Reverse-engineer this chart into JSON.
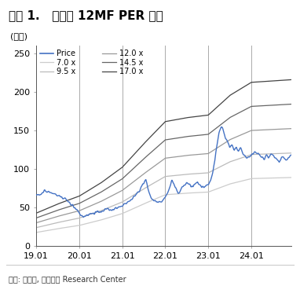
{
  "title": "그림 1.   덴티움 12MF PER 추이",
  "ylabel": "(천원)",
  "source": "자료: 덴티움, 대신증권 Research Center",
  "xlim": [
    2019.0,
    2024.92
  ],
  "ylim": [
    0,
    260
  ],
  "yticks": [
    0,
    50,
    100,
    150,
    200,
    250
  ],
  "xtick_labels": [
    "19.01",
    "20.01",
    "21.01",
    "22.01",
    "23.01",
    "24.01"
  ],
  "xtick_positions": [
    2019.0,
    2020.0,
    2021.0,
    2022.0,
    2023.0,
    2024.0
  ],
  "vline_positions": [
    2020.0,
    2021.0,
    2022.0,
    2023.0,
    2024.0
  ],
  "vline_color": "#aaaaaa",
  "price_color": "#4472C4",
  "per_colors": [
    "#cccccc",
    "#bbbbbb",
    "#999999",
    "#666666",
    "#444444"
  ],
  "per_labels": [
    "7.0 x",
    "9.5 x",
    "12.0 x",
    "14.5 x",
    "17.0 x"
  ],
  "per_multiples": [
    7.0,
    9.5,
    12.0,
    14.5,
    17.0
  ],
  "title_bg": "#e0e0e0",
  "title_color": "#000000",
  "title_fontsize": 11,
  "axis_fontsize": 8,
  "legend_fontsize": 7,
  "source_fontsize": 7,
  "eps_keypoints": {
    "2019.0": 2.5,
    "2019.5": 3.2,
    "2020.0": 3.8,
    "2020.5": 4.8,
    "2021.0": 6.0,
    "2021.5": 7.8,
    "2022.0": 9.5,
    "2022.5": 9.8,
    "2023.0": 10.0,
    "2023.5": 11.5,
    "2024.0": 12.5,
    "2024.92": 12.7
  },
  "price_keypoints": [
    [
      2019.0,
      65
    ],
    [
      2019.1,
      67
    ],
    [
      2019.2,
      72
    ],
    [
      2019.3,
      70
    ],
    [
      2019.4,
      68
    ],
    [
      2019.5,
      65
    ],
    [
      2019.6,
      63
    ],
    [
      2019.7,
      60
    ],
    [
      2019.8,
      55
    ],
    [
      2019.9,
      50
    ],
    [
      2020.0,
      42
    ],
    [
      2020.1,
      38
    ],
    [
      2020.2,
      40
    ],
    [
      2020.3,
      42
    ],
    [
      2020.4,
      44
    ],
    [
      2020.5,
      46
    ],
    [
      2020.6,
      46
    ],
    [
      2020.7,
      47
    ],
    [
      2020.8,
      47
    ],
    [
      2020.9,
      50
    ],
    [
      2021.0,
      52
    ],
    [
      2021.1,
      56
    ],
    [
      2021.2,
      60
    ],
    [
      2021.3,
      65
    ],
    [
      2021.4,
      72
    ],
    [
      2021.5,
      82
    ],
    [
      2021.55,
      87
    ],
    [
      2021.6,
      75
    ],
    [
      2021.65,
      65
    ],
    [
      2021.7,
      60
    ],
    [
      2021.8,
      58
    ],
    [
      2021.9,
      58
    ],
    [
      2022.0,
      62
    ],
    [
      2022.05,
      68
    ],
    [
      2022.1,
      75
    ],
    [
      2022.15,
      85
    ],
    [
      2022.2,
      80
    ],
    [
      2022.25,
      75
    ],
    [
      2022.3,
      68
    ],
    [
      2022.35,
      72
    ],
    [
      2022.4,
      78
    ],
    [
      2022.45,
      80
    ],
    [
      2022.5,
      82
    ],
    [
      2022.55,
      80
    ],
    [
      2022.6,
      76
    ],
    [
      2022.65,
      78
    ],
    [
      2022.7,
      80
    ],
    [
      2022.75,
      82
    ],
    [
      2022.8,
      80
    ],
    [
      2022.85,
      78
    ],
    [
      2022.9,
      76
    ],
    [
      2022.95,
      78
    ],
    [
      2023.0,
      80
    ],
    [
      2023.05,
      85
    ],
    [
      2023.1,
      95
    ],
    [
      2023.15,
      110
    ],
    [
      2023.2,
      130
    ],
    [
      2023.25,
      148
    ],
    [
      2023.3,
      155
    ],
    [
      2023.35,
      150
    ],
    [
      2023.4,
      140
    ],
    [
      2023.45,
      135
    ],
    [
      2023.5,
      128
    ],
    [
      2023.55,
      130
    ],
    [
      2023.6,
      125
    ],
    [
      2023.65,
      128
    ],
    [
      2023.7,
      122
    ],
    [
      2023.75,
      128
    ],
    [
      2023.8,
      120
    ],
    [
      2023.85,
      118
    ],
    [
      2023.9,
      115
    ],
    [
      2023.95,
      115
    ],
    [
      2024.0,
      118
    ],
    [
      2024.05,
      120
    ],
    [
      2024.1,
      122
    ],
    [
      2024.15,
      120
    ],
    [
      2024.2,
      118
    ],
    [
      2024.25,
      115
    ],
    [
      2024.3,
      112
    ],
    [
      2024.35,
      118
    ],
    [
      2024.4,
      115
    ],
    [
      2024.45,
      120
    ],
    [
      2024.5,
      118
    ],
    [
      2024.55,
      115
    ],
    [
      2024.6,
      112
    ],
    [
      2024.65,
      108
    ],
    [
      2024.7,
      115
    ],
    [
      2024.75,
      115
    ],
    [
      2024.8,
      112
    ],
    [
      2024.85,
      115
    ],
    [
      2024.92,
      117
    ]
  ]
}
